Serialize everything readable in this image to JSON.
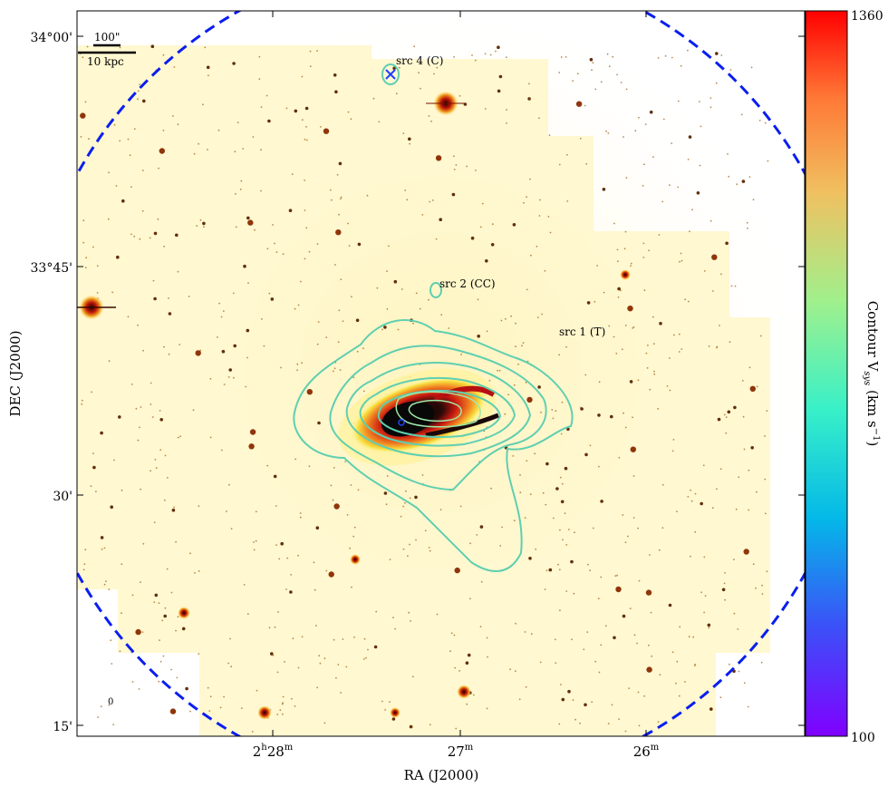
{
  "figure": {
    "xlabel": "RA (J2000)",
    "ylabel": "DEC (J2000)",
    "colorbar": {
      "label": "Contour V",
      "label_sub": "sys",
      "label_unit": " (km s",
      "label_exp": "−1",
      "label_close": ")",
      "max": "1360",
      "min": "100",
      "colormap": "rainbow"
    },
    "ra_ticks": [
      {
        "main": "2",
        "sup1": "h",
        "main2": "28",
        "sup2": "m"
      },
      {
        "main": "27",
        "sup": "m"
      },
      {
        "main": "26",
        "sup": "m"
      }
    ],
    "dec_ticks": [
      "34°00'",
      "33°45'",
      "30'",
      "15'"
    ],
    "scalebar": {
      "arcsec": "100\"",
      "kpc": "10 kpc"
    },
    "sources": [
      {
        "label": "src 4 (C)"
      },
      {
        "label": "src 2 (CC)"
      },
      {
        "label": "src 1 (T)"
      }
    ],
    "corner_mark": "0",
    "colors": {
      "contour": "#5fcfb0",
      "inner_contour": "#9fe8a8",
      "beam_circle": "#0000ff",
      "galaxy_core": "#101010",
      "galaxy_ring": "#e02010",
      "background": "#fff6c8"
    }
  }
}
